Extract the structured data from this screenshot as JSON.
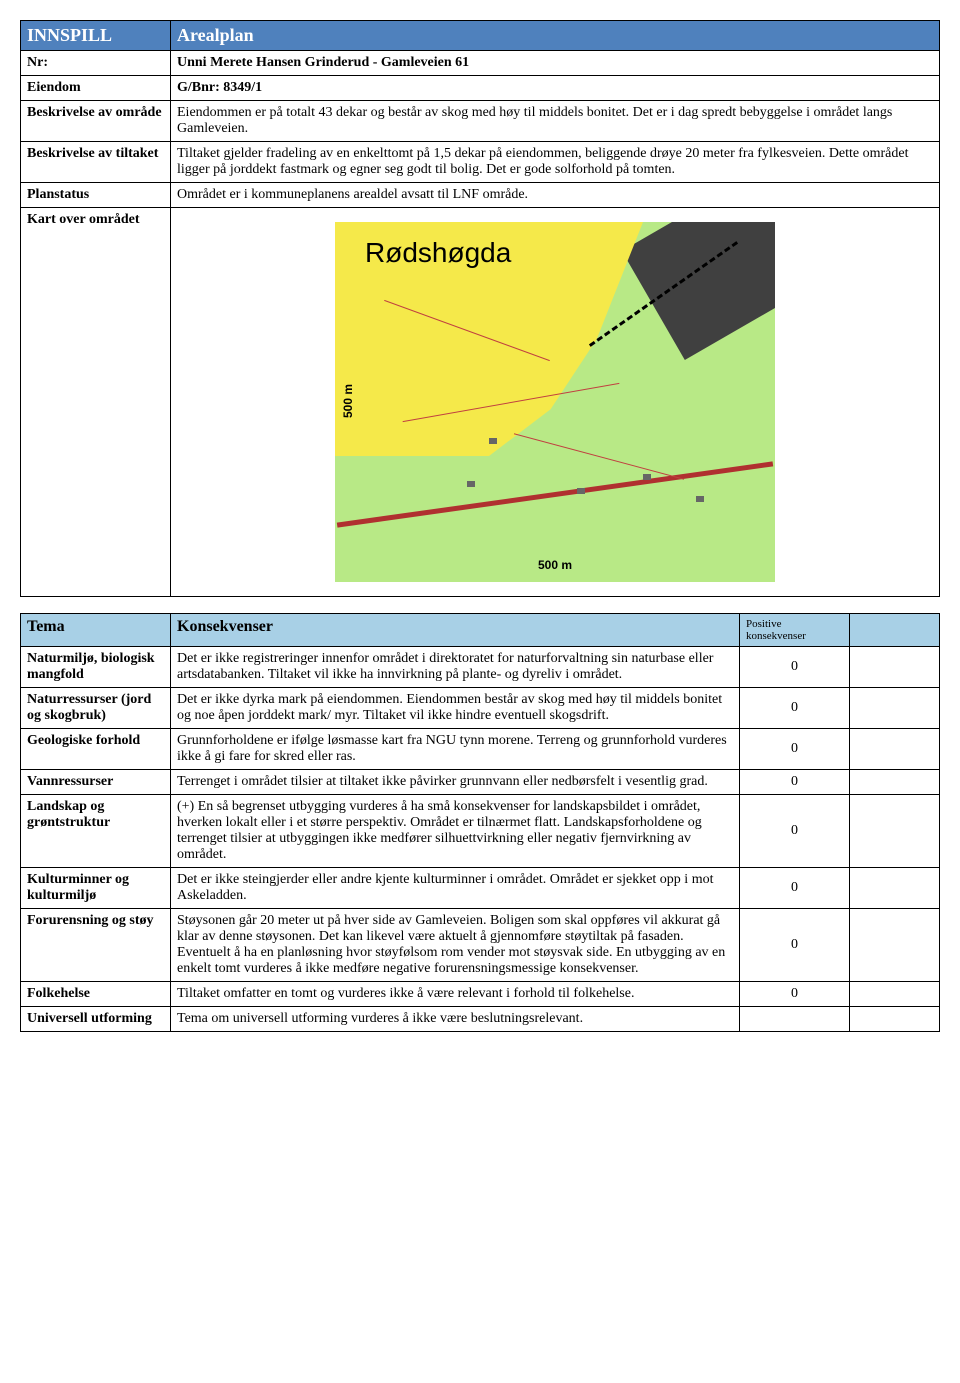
{
  "header": {
    "innspill": "INNSPILL",
    "arealplan": "Arealplan"
  },
  "info": {
    "nr_label": "Nr:",
    "nr_value": "Unni Merete Hansen Grinderud - Gamleveien 61",
    "eiendom_label": "Eiendom",
    "eiendom_value": "G/Bnr: 8349/1",
    "beskrivelse_omrade_label": "Beskrivelse av område",
    "beskrivelse_omrade_value": "Eiendommen er på totalt 43 dekar og består av skog med høy til middels bonitet. Det er i dag spredt bebyggelse i området langs Gamleveien.",
    "beskrivelse_tiltak_label": "Beskrivelse av tiltaket",
    "beskrivelse_tiltak_value": "Tiltaket gjelder fradeling av en enkelttomt på 1,5 dekar på eiendommen, beliggende drøye 20 meter fra fylkesveien. Dette området ligger på jorddekt fastmark og egner seg godt til bolig. Det er gode solforhold på tomten.",
    "planstatus_label": "Planstatus",
    "planstatus_value": "Området er i kommuneplanens arealdel avsatt til LNF område.",
    "kart_label": "Kart over området"
  },
  "map": {
    "title": "Rødshøgda",
    "scale_label": "500 m",
    "vert_scale": "500 m",
    "colors": {
      "background": "#b8e986",
      "highlight": "#f5e94a",
      "dark": "#404040",
      "road": "#b03030"
    }
  },
  "tema": {
    "header_label": "Tema",
    "konsekvenser_label": "Konsekvenser",
    "positive_label": "Positive konsekvenser",
    "rows": [
      {
        "label": "Naturmiljø, biologisk mangfold",
        "text": "Det er ikke registreringer innenfor området i direktoratet for naturforvaltning sin naturbase eller artsdatabanken. Tiltaket vil ikke ha innvirkning på plante- og dyreliv i området.",
        "value": "0"
      },
      {
        "label": "Naturressurser (jord og skogbruk)",
        "text": "Det er ikke dyrka mark på eiendommen. Eiendommen består av skog med høy til middels bonitet og noe åpen jorddekt mark/ myr. Tiltaket vil ikke hindre eventuell skogsdrift.",
        "value": "0"
      },
      {
        "label": "Geologiske forhold",
        "text": "Grunnforholdene er ifølge løsmasse kart fra NGU tynn morene. Terreng og grunnforhold vurderes ikke å gi fare for skred eller ras.",
        "value": "0"
      },
      {
        "label": "Vannressurser",
        "text": "Terrenget i området tilsier at tiltaket ikke påvirker grunnvann eller nedbørsfelt i vesentlig grad.",
        "value": "0"
      },
      {
        "label": "Landskap og grøntstruktur",
        "text": "(+) En så begrenset utbygging vurderes å ha små konsekvenser for landskapsbildet i området, hverken lokalt eller i et større perspektiv. Området er tilnærmet flatt. Landskapsforholdene og terrenget tilsier at utbyggingen ikke medfører silhuettvirkning eller negativ fjernvirkning av området.",
        "value": "0"
      },
      {
        "label": "Kulturminner og kulturmiljø",
        "text": "Det er ikke steingjerder eller andre kjente kulturminner i området. Området er sjekket opp i mot Askeladden.",
        "value": "0"
      },
      {
        "label": "Forurensning og støy",
        "text": "Støysonen går 20 meter ut på hver side av Gamleveien. Boligen som skal oppføres vil akkurat gå klar av denne støysonen. Det kan likevel være aktuelt å gjennomføre støytiltak på fasaden. Eventuelt å ha en planløsning hvor støyfølsom rom vender mot støysvak side. En utbygging av en enkelt tomt vurderes å ikke medføre negative forurensningsmessige konsekvenser.",
        "value": "0"
      },
      {
        "label": "Folkehelse",
        "text": "Tiltaket omfatter en tomt og vurderes ikke å være relevant i forhold til folkehelse.",
        "value": "0"
      },
      {
        "label": "Universell utforming",
        "text": "Tema om universell utforming vurderes å ikke være beslutningsrelevant.",
        "value": ""
      }
    ]
  }
}
